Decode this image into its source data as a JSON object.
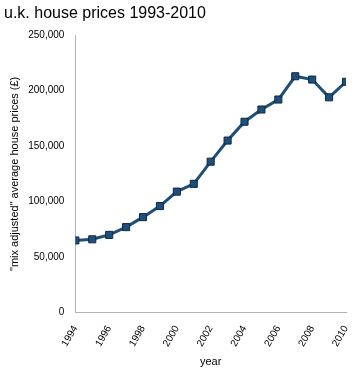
{
  "chart_data": {
    "type": "line",
    "title": "u.k. house prices 1993-2010",
    "x_label": "year",
    "y_label": "\"mix adjusted\" average house prices (£)",
    "x": [
      1994,
      1995,
      1996,
      1997,
      1998,
      1999,
      2000,
      2001,
      2002,
      2003,
      2004,
      2005,
      2006,
      2007,
      2008,
      2009,
      2010
    ],
    "values": [
      65000,
      66000,
      70000,
      77000,
      86000,
      96000,
      109000,
      116000,
      136000,
      155000,
      172000,
      183000,
      192000,
      213000,
      210000,
      194000,
      208000
    ],
    "color": "#1f4e79",
    "marker": "square",
    "line_style": "solid",
    "xlim": [
      1994,
      2010
    ],
    "xticks": [
      1994,
      1996,
      1998,
      2000,
      2002,
      2004,
      2006,
      2008,
      2010
    ],
    "ylim": [
      0,
      250000
    ],
    "yticks": [
      0,
      {
        "value": 50000,
        "label": "50,000"
      },
      {
        "value": 100000,
        "label": "100,000"
      },
      {
        "value": 150000,
        "label": "150,000"
      },
      {
        "value": 200000,
        "label": "200,000"
      },
      {
        "value": 250000,
        "label": "250,000"
      }
    ],
    "grid": false
  }
}
